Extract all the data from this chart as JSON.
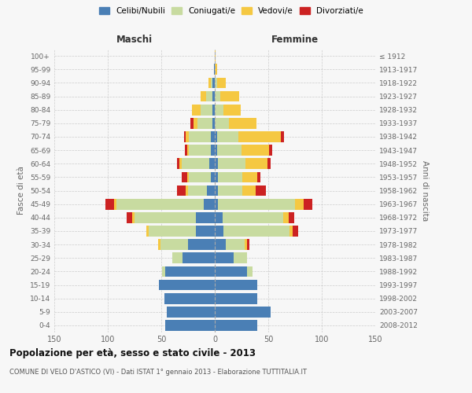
{
  "age_groups": [
    "0-4",
    "5-9",
    "10-14",
    "15-19",
    "20-24",
    "25-29",
    "30-34",
    "35-39",
    "40-44",
    "45-49",
    "50-54",
    "55-59",
    "60-64",
    "65-69",
    "70-74",
    "75-79",
    "80-84",
    "85-89",
    "90-94",
    "95-99",
    "100+"
  ],
  "birth_years": [
    "2008-2012",
    "2003-2007",
    "1998-2002",
    "1993-1997",
    "1988-1992",
    "1983-1987",
    "1978-1982",
    "1973-1977",
    "1968-1972",
    "1963-1967",
    "1958-1962",
    "1953-1957",
    "1948-1952",
    "1943-1947",
    "1938-1942",
    "1933-1937",
    "1928-1932",
    "1923-1927",
    "1918-1922",
    "1913-1917",
    "≤ 1912"
  ],
  "maschi": {
    "celibi": [
      46,
      45,
      47,
      52,
      46,
      30,
      25,
      18,
      18,
      10,
      7,
      4,
      5,
      4,
      4,
      2,
      2,
      2,
      2,
      1,
      0
    ],
    "coniugati": [
      0,
      0,
      0,
      0,
      3,
      10,
      26,
      44,
      57,
      82,
      18,
      20,
      26,
      20,
      20,
      14,
      11,
      6,
      2,
      0,
      0
    ],
    "vedovi": [
      0,
      0,
      0,
      0,
      0,
      0,
      2,
      2,
      2,
      2,
      2,
      2,
      2,
      2,
      3,
      4,
      8,
      5,
      2,
      0,
      0
    ],
    "divorziati": [
      0,
      0,
      0,
      0,
      0,
      0,
      0,
      0,
      5,
      8,
      8,
      5,
      2,
      2,
      2,
      3,
      0,
      0,
      0,
      0,
      0
    ]
  },
  "femmine": {
    "nubili": [
      40,
      52,
      40,
      40,
      30,
      18,
      10,
      8,
      7,
      3,
      3,
      3,
      3,
      2,
      2,
      0,
      0,
      0,
      0,
      0,
      0
    ],
    "coniugate": [
      0,
      0,
      0,
      0,
      5,
      12,
      18,
      62,
      57,
      72,
      23,
      23,
      26,
      23,
      20,
      13,
      8,
      5,
      2,
      0,
      0
    ],
    "vedove": [
      0,
      0,
      0,
      0,
      0,
      0,
      2,
      3,
      5,
      8,
      12,
      14,
      20,
      26,
      40,
      26,
      16,
      18,
      8,
      2,
      1
    ],
    "divorziate": [
      0,
      0,
      0,
      0,
      0,
      0,
      2,
      5,
      5,
      8,
      10,
      3,
      3,
      3,
      3,
      0,
      0,
      0,
      0,
      0,
      0
    ]
  },
  "colors": {
    "celibi_nubili": "#4a7fb5",
    "coniugati": "#c8dba0",
    "vedovi": "#f5c842",
    "divorziati": "#cc2222"
  },
  "title": "Popolazione per età, sesso e stato civile - 2013",
  "subtitle": "COMUNE DI VELO D'ASTICO (VI) - Dati ISTAT 1° gennaio 2013 - Elaborazione TUTTITALIA.IT",
  "xlabel_left": "Maschi",
  "xlabel_right": "Femmine",
  "ylabel_left": "Fasce di età",
  "ylabel_right": "Anni di nascita",
  "xlim": 150,
  "legend_labels": [
    "Celibi/Nubili",
    "Coniugati/e",
    "Vedovi/e",
    "Divorziati/e"
  ],
  "bg_color": "#f7f7f7"
}
